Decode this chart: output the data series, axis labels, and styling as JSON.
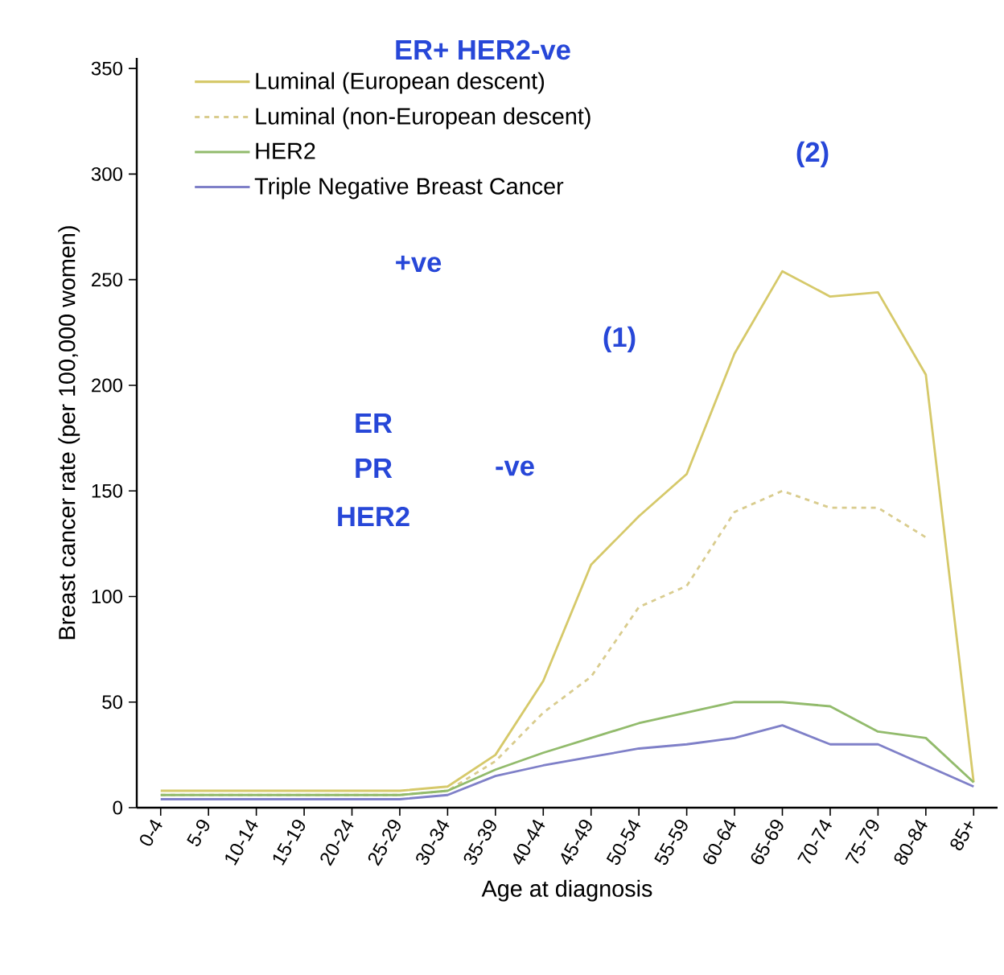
{
  "chart_data": {
    "type": "line",
    "xlabel": "Age at diagnosis",
    "ylabel": "Breast cancer rate (per 100,000 women)",
    "categories": [
      "0-4",
      "5-9",
      "10-14",
      "15-19",
      "20-24",
      "25-29",
      "30-34",
      "35-39",
      "40-44",
      "45-49",
      "50-54",
      "55-59",
      "60-64",
      "65-69",
      "70-74",
      "75-79",
      "80-84",
      "85+"
    ],
    "series": [
      {
        "name": "Luminal (European descent)",
        "color": "#d6c96a",
        "line_style": "solid",
        "values": [
          8,
          8,
          8,
          8,
          8,
          8,
          10,
          25,
          60,
          115,
          138,
          158,
          215,
          254,
          242,
          244,
          205,
          12
        ]
      },
      {
        "name": "Luminal (non-European descent)",
        "color": "#d9cc8e",
        "line_style": "dashed",
        "values": [
          6,
          6,
          6,
          6,
          6,
          6,
          8,
          22,
          45,
          62,
          95,
          105,
          140,
          150,
          142,
          142,
          128,
          null
        ]
      },
      {
        "name": "HER2",
        "color": "#92bb6c",
        "line_style": "solid",
        "values": [
          6,
          6,
          6,
          6,
          6,
          6,
          8,
          18,
          26,
          33,
          40,
          45,
          50,
          50,
          48,
          36,
          33,
          12
        ]
      },
      {
        "name": "Triple Negative Breast Cancer",
        "color": "#7f80c8",
        "line_style": "solid",
        "values": [
          4,
          4,
          4,
          4,
          4,
          4,
          6,
          15,
          20,
          24,
          28,
          30,
          33,
          39,
          30,
          30,
          20,
          10
        ]
      }
    ],
    "ylim": [
      0,
      355
    ],
    "yticks": [
      0,
      50,
      100,
      150,
      200,
      250,
      300,
      350
    ],
    "grid": false,
    "legend": "top left",
    "marker": "none",
    "annotations": [
      "ER+ HER2-ve",
      "(2)",
      "+ve",
      "(1)",
      "ER",
      "PR",
      "HER2",
      "-ve"
    ]
  }
}
